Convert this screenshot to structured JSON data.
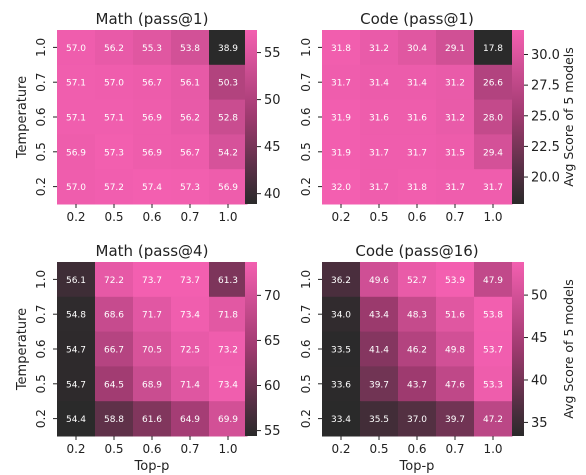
{
  "figure": {
    "x_label": "Top-p",
    "y_label": "Temperature",
    "colorbar_label": "Avg Score of 5 models"
  },
  "chart_data": [
    {
      "type": "heatmap",
      "title": "Math (pass@1)",
      "x": [
        "0.2",
        "0.5",
        "0.6",
        "0.7",
        "1.0"
      ],
      "y": [
        "1.0",
        "0.7",
        "0.6",
        "0.5",
        "0.2"
      ],
      "values": [
        [
          57.0,
          56.2,
          55.3,
          53.8,
          38.9
        ],
        [
          57.1,
          57.0,
          56.7,
          56.1,
          50.3
        ],
        [
          57.1,
          57.1,
          56.9,
          56.2,
          52.8
        ],
        [
          56.9,
          57.3,
          56.9,
          56.7,
          54.2
        ],
        [
          57.0,
          57.2,
          57.4,
          57.3,
          56.9
        ]
      ],
      "range": [
        38.9,
        57.4
      ],
      "colorbar_ticks": [
        "40",
        "45",
        "50",
        "55"
      ],
      "colorbar_label": ""
    },
    {
      "type": "heatmap",
      "title": "Code (pass@1)",
      "x": [
        "0.2",
        "0.5",
        "0.6",
        "0.7",
        "1.0"
      ],
      "y": [
        "1.0",
        "0.7",
        "0.6",
        "0.5",
        "0.2"
      ],
      "values": [
        [
          31.8,
          31.2,
          30.4,
          29.1,
          17.8
        ],
        [
          31.7,
          31.4,
          31.4,
          31.2,
          26.6
        ],
        [
          31.9,
          31.6,
          31.6,
          31.2,
          28.0
        ],
        [
          31.9,
          31.7,
          31.7,
          31.5,
          29.4
        ],
        [
          32.0,
          31.7,
          31.8,
          31.7,
          31.7
        ]
      ],
      "range": [
        17.8,
        32.0
      ],
      "colorbar_ticks": [
        "20.0",
        "22.5",
        "25.0",
        "27.5",
        "30.0"
      ],
      "colorbar_label": "Avg Score of 5 models"
    },
    {
      "type": "heatmap",
      "title": "Math (pass@4)",
      "x": [
        "0.2",
        "0.5",
        "0.6",
        "0.7",
        "1.0"
      ],
      "y": [
        "1.0",
        "0.7",
        "0.6",
        "0.5",
        "0.2"
      ],
      "values": [
        [
          56.1,
          72.2,
          73.7,
          73.7,
          61.3
        ],
        [
          54.8,
          68.6,
          71.7,
          73.4,
          71.8
        ],
        [
          54.7,
          66.7,
          70.5,
          72.5,
          73.2
        ],
        [
          54.7,
          64.5,
          68.9,
          71.4,
          73.4
        ],
        [
          54.4,
          58.8,
          61.6,
          64.9,
          69.9
        ]
      ],
      "range": [
        54.4,
        73.7
      ],
      "colorbar_ticks": [
        "55",
        "60",
        "65",
        "70"
      ],
      "colorbar_label": ""
    },
    {
      "type": "heatmap",
      "title": "Code (pass@16)",
      "x": [
        "0.2",
        "0.5",
        "0.6",
        "0.7",
        "1.0"
      ],
      "y": [
        "1.0",
        "0.7",
        "0.6",
        "0.5",
        "0.2"
      ],
      "values": [
        [
          36.2,
          49.6,
          52.7,
          53.9,
          47.9
        ],
        [
          34.0,
          43.4,
          48.3,
          51.6,
          53.8
        ],
        [
          33.5,
          41.4,
          46.2,
          49.8,
          53.7
        ],
        [
          33.6,
          39.7,
          43.7,
          47.6,
          53.3
        ],
        [
          33.4,
          35.5,
          37.0,
          39.7,
          47.2
        ]
      ],
      "range": [
        33.4,
        53.9
      ],
      "colorbar_ticks": [
        "35",
        "40",
        "45",
        "50"
      ],
      "colorbar_label": "Avg Score of 5 models"
    }
  ],
  "colors": {
    "low": "#2a2a2a",
    "mid": "#9e3a6f",
    "high": "#f35fb0",
    "text": "#ffffff",
    "axis": "#222222"
  }
}
